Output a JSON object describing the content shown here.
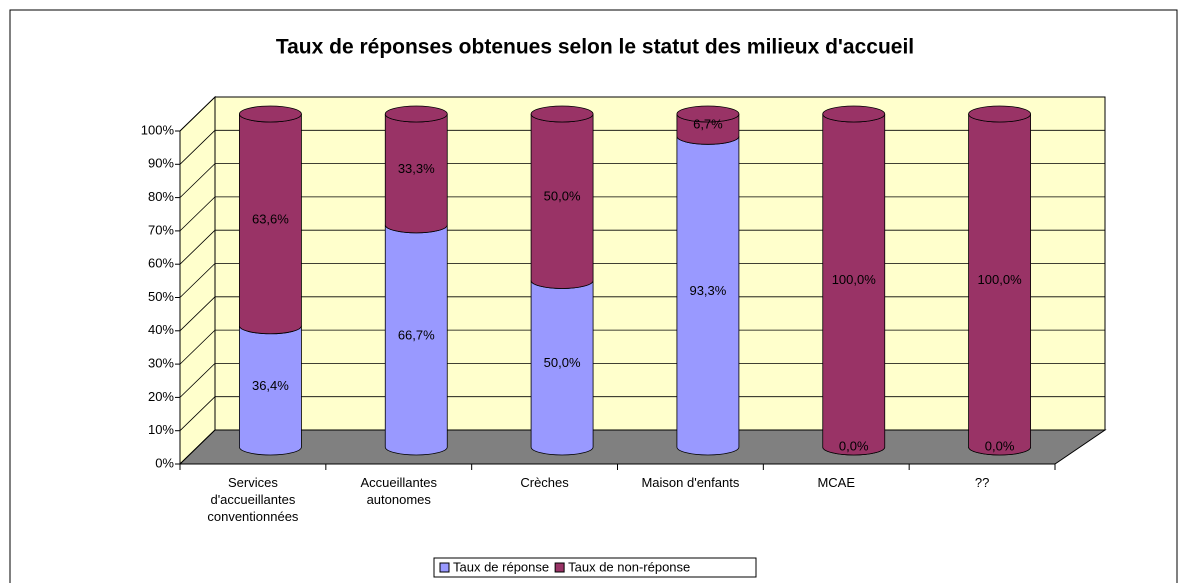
{
  "chart_data": {
    "type": "bar3d_stacked_cylinder",
    "title": "Taux de réponses obtenues selon le statut des milieux d'accueil",
    "categories": [
      "Services d'accueillantes conventionnées",
      "Accueillantes autonomes",
      "Crèches",
      "Maison d'enfants",
      "MCAE",
      "??"
    ],
    "series": [
      {
        "name": "Taux de réponse",
        "color": "#9999ff",
        "values": [
          36.4,
          66.7,
          50.0,
          93.3,
          0.0,
          0.0
        ],
        "value_labels": [
          "36,4%",
          "66,7%",
          "50,0%",
          "93,3%",
          "0,0%",
          "0,0%"
        ]
      },
      {
        "name": "Taux de non-réponse",
        "color": "#993366",
        "values": [
          63.6,
          33.3,
          50.0,
          6.7,
          100.0,
          100.0
        ],
        "value_labels": [
          "63,6%",
          "33,3%",
          "50,0%",
          "6,7%",
          "100,0%",
          "100,0%"
        ]
      }
    ],
    "ylim": [
      0,
      100
    ],
    "yticks": [
      {
        "value": 0,
        "label": "0%"
      },
      {
        "value": 10,
        "label": "10%"
      },
      {
        "value": 20,
        "label": "20%"
      },
      {
        "value": 30,
        "label": "30%"
      },
      {
        "value": 40,
        "label": "40%"
      },
      {
        "value": 50,
        "label": "50%"
      },
      {
        "value": 60,
        "label": "60%"
      },
      {
        "value": 70,
        "label": "70%"
      },
      {
        "value": 80,
        "label": "80%"
      },
      {
        "value": 90,
        "label": "90%"
      },
      {
        "value": 100,
        "label": "100%"
      }
    ],
    "grid": true,
    "legend": "bottom"
  }
}
